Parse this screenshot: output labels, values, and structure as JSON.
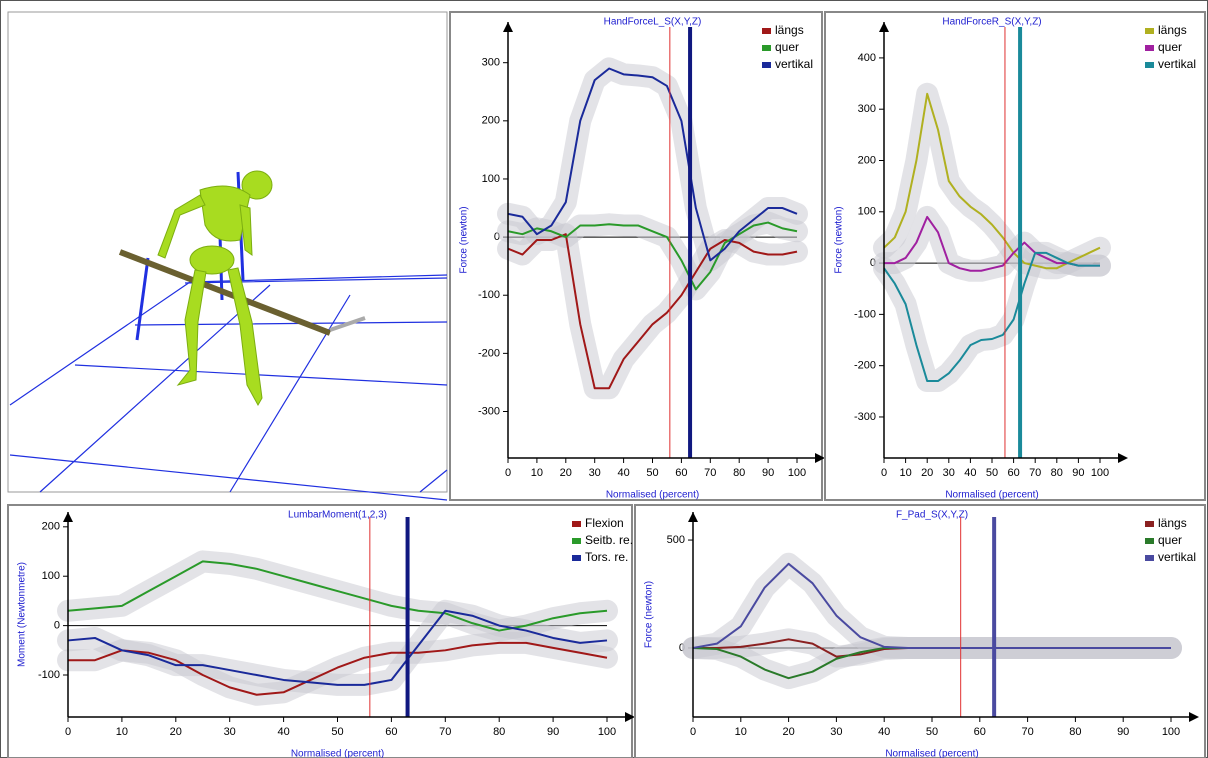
{
  "chart_data": [
    {
      "type": "line",
      "title": "HandForceL_S(X,Y,Z)",
      "x_label": "Normalised (percent)",
      "y_label": "Force (newton)",
      "x": [
        0,
        5,
        10,
        15,
        20,
        25,
        30,
        35,
        40,
        45,
        50,
        55,
        60,
        65,
        70,
        75,
        80,
        85,
        90,
        95,
        100
      ],
      "xlim": [
        0,
        100
      ],
      "xticks": [
        0,
        10,
        20,
        30,
        40,
        50,
        60,
        70,
        80,
        90,
        100
      ],
      "ylim": [
        -380,
        370
      ],
      "yticks": [
        -300,
        -200,
        -100,
        0,
        100,
        200,
        300
      ],
      "series": [
        {
          "name": "längs",
          "color": "#a01818",
          "values": [
            -20,
            -30,
            -5,
            -5,
            5,
            -150,
            -260,
            -260,
            -210,
            -180,
            -150,
            -130,
            -100,
            -60,
            -20,
            -5,
            -10,
            -25,
            -30,
            -30,
            -25
          ]
        },
        {
          "name": "quer",
          "color": "#2a9a2a",
          "values": [
            10,
            5,
            15,
            10,
            0,
            20,
            20,
            22,
            20,
            20,
            10,
            0,
            -40,
            -90,
            -60,
            -10,
            5,
            20,
            25,
            15,
            10
          ]
        },
        {
          "name": "vertikal",
          "color": "#1a2a9a",
          "values": [
            40,
            35,
            5,
            20,
            60,
            200,
            270,
            290,
            280,
            278,
            275,
            260,
            200,
            50,
            -40,
            -20,
            10,
            30,
            50,
            50,
            40
          ]
        }
      ],
      "markers": [
        {
          "x": 56,
          "color": "#e03030"
        },
        {
          "x": 63,
          "color": "#101880"
        }
      ]
    },
    {
      "type": "line",
      "title": "HandForceR_S(X,Y,Z)",
      "x_label": "Normalised (percent)",
      "y_label": "Force (newton)",
      "x": [
        0,
        5,
        10,
        15,
        20,
        25,
        30,
        35,
        40,
        45,
        50,
        55,
        60,
        65,
        70,
        75,
        80,
        85,
        90,
        95,
        100
      ],
      "xlim": [
        0,
        100
      ],
      "xticks": [
        0,
        10,
        20,
        30,
        40,
        50,
        60,
        70,
        80,
        90,
        100
      ],
      "ylim": [
        -380,
        470
      ],
      "yticks": [
        -300,
        -200,
        -100,
        0,
        100,
        200,
        300,
        400
      ],
      "series": [
        {
          "name": "längs",
          "color": "#b0b020",
          "values": [
            30,
            50,
            100,
            200,
            330,
            260,
            160,
            130,
            110,
            95,
            75,
            50,
            20,
            0,
            -5,
            -10,
            -10,
            0,
            10,
            20,
            30
          ]
        },
        {
          "name": "quer",
          "color": "#a020a0",
          "values": [
            0,
            0,
            10,
            40,
            90,
            60,
            0,
            -10,
            -15,
            -15,
            -10,
            -5,
            20,
            40,
            20,
            10,
            0,
            0,
            -5,
            -5,
            -5
          ]
        },
        {
          "name": "vertikal",
          "color": "#1a8a9a",
          "values": [
            -10,
            -40,
            -80,
            -160,
            -230,
            -230,
            -215,
            -190,
            -160,
            -150,
            -148,
            -140,
            -110,
            -40,
            20,
            20,
            10,
            0,
            -5,
            -5,
            -5
          ]
        }
      ],
      "markers": [
        {
          "x": 56,
          "color": "#e03030"
        },
        {
          "x": 63,
          "color": "#1a8a9a"
        }
      ]
    },
    {
      "type": "line",
      "title": "LumbarMoment(1,2,3)",
      "x_label": "Normalised (percent)",
      "y_label": "Moment (Newtonmetre)",
      "x": [
        0,
        5,
        10,
        15,
        20,
        25,
        30,
        35,
        40,
        45,
        50,
        55,
        60,
        65,
        70,
        75,
        80,
        85,
        90,
        95,
        100
      ],
      "xlim": [
        0,
        100
      ],
      "xticks": [
        0,
        10,
        20,
        30,
        40,
        50,
        60,
        70,
        80,
        90,
        100
      ],
      "ylim": [
        -185,
        230
      ],
      "yticks": [
        -100,
        0,
        100,
        200
      ],
      "series": [
        {
          "name": "Flexion",
          "color": "#a01818",
          "values": [
            -70,
            -70,
            -50,
            -55,
            -70,
            -100,
            -125,
            -140,
            -135,
            -110,
            -85,
            -65,
            -55,
            -55,
            -50,
            -40,
            -35,
            -35,
            -45,
            -55,
            -65
          ]
        },
        {
          "name": "Seitb. re.",
          "color": "#2a9a2a",
          "values": [
            30,
            35,
            40,
            70,
            100,
            130,
            125,
            115,
            100,
            85,
            70,
            55,
            40,
            30,
            25,
            5,
            -10,
            0,
            15,
            25,
            30
          ]
        },
        {
          "name": "Tors. re.",
          "color": "#1a2a9a",
          "values": [
            -30,
            -25,
            -50,
            -60,
            -80,
            -80,
            -90,
            -100,
            -110,
            -115,
            -120,
            -120,
            -110,
            -40,
            30,
            20,
            0,
            -10,
            -25,
            -35,
            -30
          ]
        }
      ],
      "markers": [
        {
          "x": 56,
          "color": "#e03030"
        },
        {
          "x": 63,
          "color": "#101880"
        }
      ]
    },
    {
      "type": "line",
      "title": "F_Pad_S(X,Y,Z)",
      "x_label": "Normalised (percent)",
      "y_label": "Force (newton)",
      "x": [
        0,
        5,
        10,
        15,
        20,
        25,
        30,
        35,
        40,
        45,
        50,
        55,
        60,
        65,
        70,
        75,
        80,
        85,
        90,
        95,
        100
      ],
      "xlim": [
        0,
        100
      ],
      "xticks": [
        0,
        10,
        20,
        30,
        40,
        50,
        60,
        70,
        80,
        90,
        100
      ],
      "ylim": [
        -320,
        630
      ],
      "yticks": [
        0,
        500
      ],
      "series": [
        {
          "name": "längs",
          "color": "#8a2020",
          "values": [
            0,
            0,
            5,
            20,
            40,
            20,
            -40,
            -30,
            -5,
            0,
            0,
            0,
            0,
            0,
            0,
            0,
            0,
            0,
            0,
            0,
            0
          ]
        },
        {
          "name": "quer",
          "color": "#2a7a2a",
          "values": [
            0,
            -5,
            -40,
            -100,
            -140,
            -110,
            -50,
            -20,
            0,
            0,
            0,
            0,
            0,
            0,
            0,
            0,
            0,
            0,
            0,
            0,
            0
          ]
        },
        {
          "name": "vertikal",
          "color": "#4a4aa0",
          "values": [
            0,
            20,
            100,
            280,
            390,
            300,
            150,
            50,
            5,
            0,
            0,
            0,
            0,
            0,
            0,
            0,
            0,
            0,
            0,
            0,
            0
          ]
        }
      ],
      "markers": [
        {
          "x": 56,
          "color": "#e03030"
        },
        {
          "x": 63,
          "color": "#4a4aa0"
        }
      ]
    }
  ]
}
